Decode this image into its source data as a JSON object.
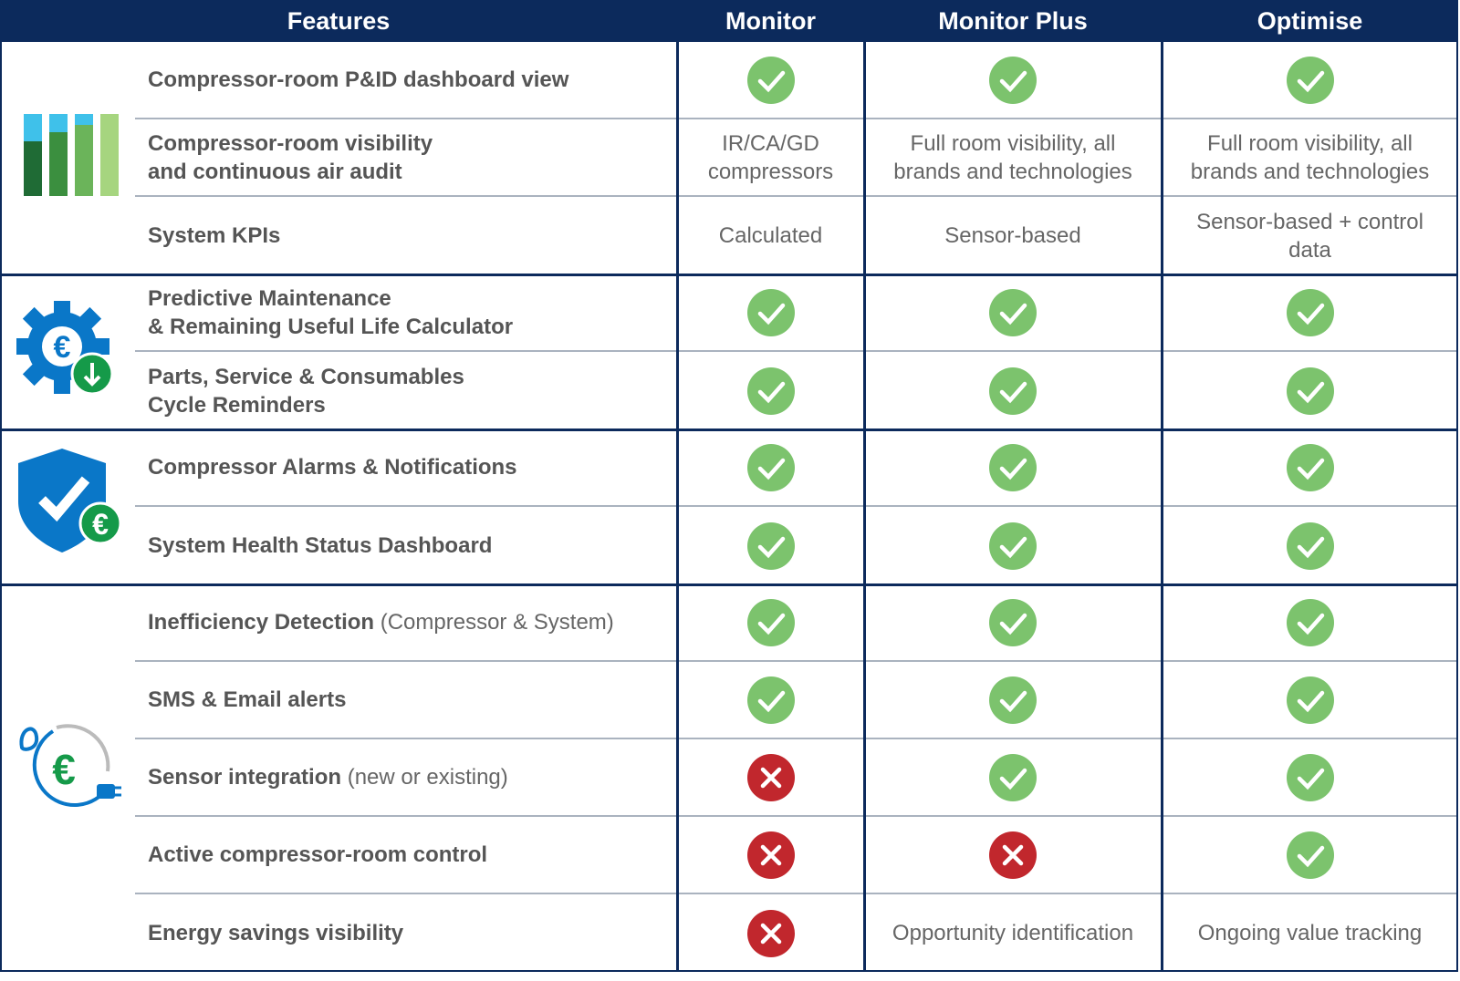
{
  "header": {
    "columns": [
      "Features",
      "Monitor",
      "Monitor Plus",
      "Optimise"
    ]
  },
  "groups": [
    {
      "rows": [
        {
          "feature": [
            "Compressor-room P&ID dashboard view"
          ],
          "cells": [
            {
              "status": "check"
            },
            {
              "status": "check"
            },
            {
              "status": "check"
            }
          ]
        },
        {
          "feature": [
            "Compressor-room visibility",
            "and continuous air audit"
          ],
          "cells": [
            {
              "text": [
                "IR/CA/GD",
                "compressors"
              ]
            },
            {
              "text": [
                "Full room visibility, all",
                "brands and technologies"
              ]
            },
            {
              "text": [
                "Full room visibility, all",
                "brands and technologies"
              ]
            }
          ]
        },
        {
          "feature": [
            "System KPIs"
          ],
          "cells": [
            {
              "text": [
                "Calculated"
              ]
            },
            {
              "text": [
                "Sensor-based"
              ]
            },
            {
              "text": [
                "Sensor-based + control",
                "data"
              ]
            }
          ]
        }
      ]
    },
    {
      "rows": [
        {
          "feature": [
            "Predictive Maintenance",
            "& Remaining Useful Life Calculator"
          ],
          "cells": [
            {
              "status": "check"
            },
            {
              "status": "check"
            },
            {
              "status": "check"
            }
          ]
        },
        {
          "feature": [
            "Parts, Service & Consumables",
            "Cycle Reminders"
          ],
          "cells": [
            {
              "status": "check"
            },
            {
              "status": "check"
            },
            {
              "status": "check"
            }
          ]
        }
      ]
    },
    {
      "rows": [
        {
          "feature": [
            "Compressor Alarms & Notifications"
          ],
          "cells": [
            {
              "status": "check"
            },
            {
              "status": "check"
            },
            {
              "status": "check"
            }
          ]
        },
        {
          "feature": [
            "System Health Status Dashboard"
          ],
          "cells": [
            {
              "status": "check"
            },
            {
              "status": "check"
            },
            {
              "status": "check"
            }
          ]
        }
      ]
    },
    {
      "rows": [
        {
          "feature": [
            "Inefficiency Detection"
          ],
          "note": "(Compressor & System)",
          "cells": [
            {
              "status": "check"
            },
            {
              "status": "check"
            },
            {
              "status": "check"
            }
          ]
        },
        {
          "feature": [
            "SMS & Email alerts"
          ],
          "cells": [
            {
              "status": "check"
            },
            {
              "status": "check"
            },
            {
              "status": "check"
            }
          ]
        },
        {
          "feature": [
            "Sensor integration"
          ],
          "note": "(new or existing)",
          "cells": [
            {
              "status": "cross"
            },
            {
              "status": "check"
            },
            {
              "status": "check"
            }
          ]
        },
        {
          "feature": [
            "Active compressor-room control"
          ],
          "cells": [
            {
              "status": "cross"
            },
            {
              "status": "cross"
            },
            {
              "status": "check"
            }
          ]
        },
        {
          "feature": [
            "Energy savings visibility"
          ],
          "cells": [
            {
              "status": "cross"
            },
            {
              "text": [
                "Opportunity identification"
              ]
            },
            {
              "text": [
                "Ongoing value tracking"
              ]
            }
          ]
        }
      ]
    }
  ]
}
